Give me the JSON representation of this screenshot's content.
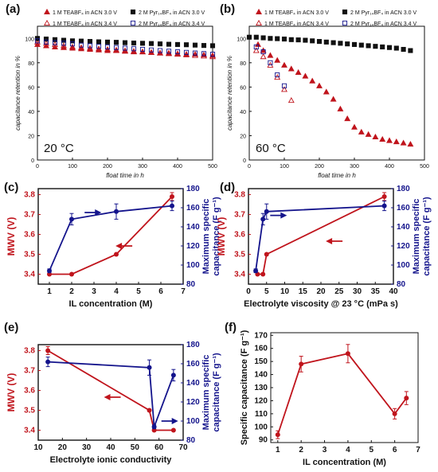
{
  "panel_labels": [
    "(a)",
    "(b)",
    "(c)",
    "(d)",
    "(e)",
    "(f)"
  ],
  "colors": {
    "red": "#c0141c",
    "blue": "#14148c",
    "black": "#111111",
    "grey": "#444444"
  },
  "chart_data": [
    {
      "id": "a",
      "type": "scatter",
      "temperature_label": "20 °C",
      "xlabel": "float time in h",
      "ylabel": "capacitance retention in %",
      "xlim": [
        0,
        500
      ],
      "ylim": [
        0,
        110
      ],
      "xticks": [
        "0",
        "100",
        "200",
        "300",
        "400",
        "500"
      ],
      "yticks": [
        "0",
        "20",
        "40",
        "60",
        "80",
        "100"
      ],
      "legend": "top",
      "series": [
        {
          "name": "1 M TEABF₄ in ACN 3.0 V",
          "marker": "triangle-filled",
          "color": "#c0141c",
          "x": [
            0,
            25,
            50,
            75,
            100,
            125,
            150,
            175,
            200,
            225,
            250,
            275,
            300,
            325,
            350,
            375,
            400,
            425,
            450,
            475,
            500
          ],
          "y": [
            95,
            94,
            93,
            92.5,
            92,
            91.5,
            91,
            90.5,
            90,
            90,
            89.5,
            89,
            89,
            88.5,
            88,
            88,
            87.5,
            87,
            87,
            86.5,
            86
          ]
        },
        {
          "name": "1 M TEABF₄ in ACN 3.4 V",
          "marker": "triangle-open",
          "color": "#c0141c",
          "x": [
            0,
            25,
            50,
            75,
            100,
            125,
            150,
            175,
            200,
            225,
            250,
            275,
            300,
            325,
            350,
            375,
            400,
            425,
            450,
            475,
            500
          ],
          "y": [
            97,
            96,
            95,
            94,
            93,
            92.5,
            92,
            91.5,
            91,
            90.5,
            90,
            89.5,
            89,
            88.5,
            88,
            87.5,
            87,
            86.5,
            86,
            85.5,
            85
          ]
        },
        {
          "name": "2 M Pyr₁₄BF₄ in ACN 3.0 V",
          "marker": "square-filled",
          "color": "#111111",
          "x": [
            0,
            25,
            50,
            75,
            100,
            125,
            150,
            175,
            200,
            225,
            250,
            275,
            300,
            325,
            350,
            375,
            400,
            425,
            450,
            475,
            500
          ],
          "y": [
            100,
            99.5,
            99,
            98.5,
            98,
            97.8,
            97.5,
            97.2,
            97,
            96.8,
            96.5,
            96.2,
            96,
            95.8,
            95.5,
            95.2,
            95,
            94.8,
            94.5,
            94.2,
            94
          ]
        },
        {
          "name": "2 M Pyr₁₄BF₄ in ACN 3.4 V",
          "marker": "square-open",
          "color": "#14148c",
          "x": [
            0,
            25,
            50,
            75,
            100,
            125,
            150,
            175,
            200,
            225,
            250,
            275,
            300,
            325,
            350,
            375,
            400,
            425,
            450,
            475,
            500
          ],
          "y": [
            98,
            97,
            96.5,
            96,
            95.5,
            94.5,
            94,
            93.5,
            93,
            92.5,
            92,
            91.5,
            91,
            90.5,
            90,
            89.5,
            89,
            88.5,
            88,
            87.5,
            87
          ]
        }
      ]
    },
    {
      "id": "b",
      "type": "scatter",
      "temperature_label": "60 °C",
      "xlabel": "float time in h",
      "ylabel": "capacitance retention in %",
      "xlim": [
        0,
        500
      ],
      "ylim": [
        0,
        110
      ],
      "xticks": [
        "0",
        "100",
        "200",
        "300",
        "400",
        "500"
      ],
      "yticks": [
        "0",
        "20",
        "40",
        "60",
        "80",
        "100"
      ],
      "legend": "top",
      "series": [
        {
          "name": "1 M TEABF₄ in ACN 3.0 V",
          "marker": "triangle-filled",
          "color": "#c0141c",
          "x": [
            25,
            40,
            60,
            80,
            100,
            120,
            140,
            160,
            180,
            200,
            220,
            240,
            260,
            280,
            300,
            320,
            340,
            360,
            380,
            400,
            420,
            440,
            460
          ],
          "y": [
            95,
            90,
            86,
            82,
            78,
            75,
            72,
            69,
            65,
            61,
            56,
            50,
            42,
            34,
            27,
            23,
            21,
            19,
            17,
            16,
            15,
            14,
            13
          ]
        },
        {
          "name": "1 M TEABF₄ in ACN 3.4 V",
          "marker": "triangle-open",
          "color": "#c0141c",
          "x": [
            20,
            40,
            60,
            80,
            100,
            120
          ],
          "y": [
            90,
            85,
            78,
            68,
            58,
            49
          ]
        },
        {
          "name": "2 M Pyr₁₄BF₄ in ACN 3.0 V",
          "marker": "square-filled",
          "color": "#111111",
          "x": [
            0,
            20,
            40,
            60,
            80,
            100,
            120,
            140,
            160,
            180,
            200,
            220,
            240,
            260,
            280,
            300,
            320,
            340,
            360,
            380,
            400,
            420,
            440,
            460
          ],
          "y": [
            101,
            101,
            100.5,
            100,
            99.8,
            99.5,
            99,
            98.8,
            98.5,
            98,
            97.5,
            97,
            96.5,
            96,
            95.5,
            95,
            94.5,
            94,
            93.5,
            93,
            92.5,
            92,
            91,
            90
          ]
        },
        {
          "name": "2 M Pyr₁₄BF₄ in ACN 3.4 V",
          "marker": "square-open",
          "color": "#14148c",
          "x": [
            20,
            40,
            60,
            80,
            100
          ],
          "y": [
            93,
            89,
            80,
            70,
            61
          ]
        }
      ]
    },
    {
      "id": "c",
      "type": "line",
      "xlabel": "IL concentration (M)",
      "ylabel_left": "MWV (V)",
      "ylabel_right": "Maximum specific capacitance (F g⁻¹)",
      "xlim": [
        0.5,
        7
      ],
      "xticks": [
        "1",
        "2",
        "3",
        "4",
        "5",
        "6",
        "7"
      ],
      "ylim_left": [
        3.35,
        3.83
      ],
      "yticks_left": [
        "3.4",
        "3.5",
        "3.6",
        "3.7",
        "3.8"
      ],
      "ylim_right": [
        80,
        180
      ],
      "yticks_right": [
        "80",
        "100",
        "120",
        "140",
        "160",
        "180"
      ],
      "arrows": [
        "left",
        "right"
      ],
      "series": [
        {
          "name": "",
          "axis": "left",
          "color": "#c0141c",
          "x": [
            1,
            2,
            4,
            6.5
          ],
          "y": [
            3.4,
            3.4,
            3.5,
            3.79
          ],
          "err": [
            0,
            0,
            0,
            0.02
          ]
        },
        {
          "name": "",
          "axis": "right",
          "color": "#14148c",
          "x": [
            1,
            2,
            4,
            6.5
          ],
          "y": [
            94,
            148,
            156,
            162
          ],
          "err": [
            2,
            6,
            8,
            5
          ]
        }
      ]
    },
    {
      "id": "d",
      "type": "line",
      "xlabel": "Electrolyte viscosity @ 23 °C (mPa s)",
      "ylabel_left": "MWV (V)",
      "ylabel_right": "Maximum specific capacitance (F g⁻¹)",
      "xlim": [
        0,
        40
      ],
      "xticks": [
        "0",
        "5",
        "10",
        "15",
        "20",
        "25",
        "30",
        "35",
        "40"
      ],
      "ylim_left": [
        3.35,
        3.83
      ],
      "yticks_left": [
        "3.4",
        "3.5",
        "3.6",
        "3.7",
        "3.8"
      ],
      "ylim_right": [
        80,
        180
      ],
      "yticks_right": [
        "80",
        "100",
        "120",
        "140",
        "160",
        "180"
      ],
      "arrows": [
        "left",
        "right"
      ],
      "series": [
        {
          "name": "",
          "axis": "left",
          "color": "#c0141c",
          "x": [
            2.5,
            4,
            5,
            37.5
          ],
          "y": [
            3.4,
            3.4,
            3.5,
            3.79
          ],
          "err": [
            0,
            0,
            0,
            0.02
          ]
        },
        {
          "name": "",
          "axis": "right",
          "color": "#14148c",
          "x": [
            2,
            4,
            5,
            37.5
          ],
          "y": [
            94,
            148,
            156,
            162
          ],
          "err": [
            2,
            6,
            8,
            5
          ]
        }
      ]
    },
    {
      "id": "e",
      "type": "line",
      "xlabel": "Electrolyte ionic conductivity",
      "ylabel_left": "MWV (V)",
      "ylabel_right": "Maximum specific capacitance (F g⁻¹)",
      "xlim": [
        10,
        70
      ],
      "xticks": [
        "10",
        "20",
        "30",
        "40",
        "50",
        "60",
        "70"
      ],
      "ylim_left": [
        3.35,
        3.83
      ],
      "yticks_left": [
        "3.4",
        "3.5",
        "3.6",
        "3.7",
        "3.8"
      ],
      "ylim_right": [
        80,
        180
      ],
      "yticks_right": [
        "80",
        "100",
        "120",
        "140",
        "160",
        "180"
      ],
      "arrows": [
        "left",
        "right"
      ],
      "series": [
        {
          "name": "",
          "axis": "left",
          "color": "#c0141c",
          "x": [
            14,
            56,
            58,
            66
          ],
          "y": [
            3.8,
            3.5,
            3.4,
            3.4
          ],
          "err": [
            0.02,
            0,
            0,
            0
          ]
        },
        {
          "name": "",
          "axis": "right",
          "color": "#14148c",
          "x": [
            14,
            56,
            58,
            66
          ],
          "y": [
            162,
            156,
            94,
            148
          ],
          "err": [
            5,
            8,
            2,
            6
          ]
        }
      ]
    },
    {
      "id": "f",
      "type": "line",
      "xlabel": "IL concentration (M)",
      "ylabel": "Specific capacitance (F g⁻¹)",
      "xlim": [
        0.7,
        7
      ],
      "xticks": [
        "1",
        "2",
        "3",
        "4",
        "5",
        "6",
        "7"
      ],
      "ylim": [
        88,
        172
      ],
      "yticks": [
        "90",
        "100",
        "110",
        "120",
        "130",
        "140",
        "150",
        "160",
        "170"
      ],
      "series": [
        {
          "name": "",
          "color": "#c0141c",
          "x": [
            1,
            2,
            4,
            6,
            6.5
          ],
          "y": [
            94,
            148,
            156,
            110,
            122
          ],
          "err": [
            3,
            6,
            7,
            4,
            5
          ]
        }
      ]
    }
  ]
}
